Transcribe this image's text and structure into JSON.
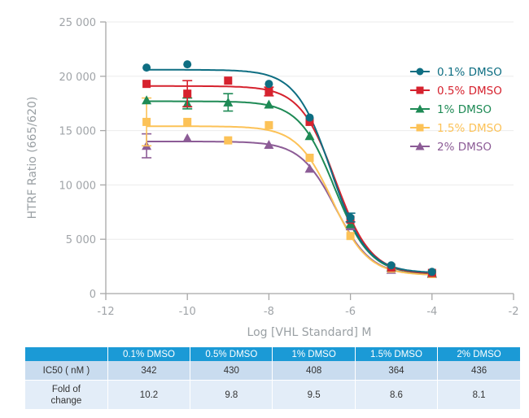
{
  "chart_data": {
    "type": "scatter",
    "title": "",
    "xlabel": "Log [VHL Standard] M",
    "ylabel": "HTRF Ratio (665/620)",
    "xlim": [
      -12,
      -2
    ],
    "ylim": [
      0,
      25000
    ],
    "xticks": [
      -12,
      -10,
      -8,
      -6,
      -4,
      -2
    ],
    "xtick_labels": [
      "-12",
      "-10",
      "-8",
      "-6",
      "-4",
      "-2"
    ],
    "yticks": [
      0,
      5000,
      10000,
      15000,
      20000,
      25000
    ],
    "ytick_labels": [
      "0",
      "5 000",
      "10 000",
      "15 000",
      "20 000",
      "25 000"
    ],
    "grid": "horizontal",
    "legend_position": "top-right",
    "series": [
      {
        "name": "0.1% DMSO",
        "color": "#0e6e82",
        "marker": "circle",
        "x": [
          -11,
          -10,
          -8,
          -7,
          -6,
          -5,
          -4
        ],
        "y": [
          20800,
          21100,
          19300,
          16200,
          7000,
          2600,
          2000
        ],
        "err": [
          0,
          0,
          0,
          0,
          400,
          0,
          0
        ],
        "fit": {
          "top": 20600,
          "bottom": 1900,
          "logIC50": -6.47,
          "hill": 1.0
        }
      },
      {
        "name": "0.5% DMSO",
        "color": "#d6222e",
        "marker": "square",
        "x": [
          -11,
          -10,
          -9,
          -8,
          -7,
          -6,
          -5,
          -4
        ],
        "y": [
          19300,
          18400,
          19600,
          18600,
          15800,
          6800,
          2400,
          1900
        ],
        "err": [
          0,
          1200,
          0,
          400,
          0,
          0,
          0,
          0
        ],
        "fit": {
          "top": 19100,
          "bottom": 1800,
          "logIC50": -6.37,
          "hill": 1.0
        }
      },
      {
        "name": "1% DMSO",
        "color": "#1e8a55",
        "marker": "triangle",
        "x": [
          -11,
          -10,
          -9,
          -8,
          -7,
          -6,
          -5,
          -4
        ],
        "y": [
          17800,
          17500,
          17600,
          17400,
          14500,
          6400,
          2400,
          1900
        ],
        "err": [
          0,
          500,
          800,
          0,
          0,
          0,
          0,
          0
        ],
        "fit": {
          "top": 17700,
          "bottom": 1800,
          "logIC50": -6.39,
          "hill": 1.0
        }
      },
      {
        "name": "1.5% DMSO",
        "color": "#fcc257",
        "marker": "square",
        "x": [
          -11,
          -10,
          -9,
          -8,
          -7,
          -6,
          -5,
          -4
        ],
        "y": [
          15800,
          15800,
          14100,
          15500,
          12500,
          5300,
          2300,
          1800
        ],
        "err": [
          2200,
          0,
          0,
          0,
          0,
          0,
          0,
          0
        ],
        "fit": {
          "top": 15400,
          "bottom": 1700,
          "logIC50": -6.44,
          "hill": 1.0
        }
      },
      {
        "name": "2% DMSO",
        "color": "#8c5c96",
        "marker": "triangle",
        "x": [
          -11,
          -10,
          -8,
          -7,
          -6,
          -5,
          -4
        ],
        "y": [
          13600,
          14300,
          13700,
          11500,
          6200,
          2200,
          1800
        ],
        "err": [
          1100,
          0,
          0,
          0,
          0,
          0,
          0
        ],
        "fit": {
          "top": 14000,
          "bottom": 1700,
          "logIC50": -6.36,
          "hill": 1.0
        }
      }
    ]
  },
  "table": {
    "columns": [
      "",
      "0.1% DMSO",
      "0.5% DMSO",
      "1% DMSO",
      "1.5% DMSO",
      "2% DMSO"
    ],
    "rows": [
      {
        "label": "IC50 ( nM )",
        "values": [
          "342",
          "430",
          "408",
          "364",
          "436"
        ]
      },
      {
        "label_line1": "Fold of",
        "label_line2": "change",
        "values": [
          "10.2",
          "9.8",
          "9.5",
          "8.6",
          "8.1"
        ]
      }
    ]
  }
}
